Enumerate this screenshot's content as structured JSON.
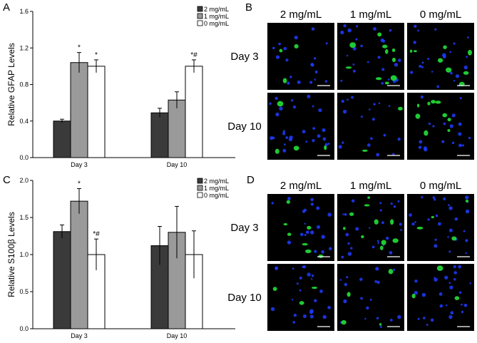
{
  "panels": {
    "A": "A",
    "B": "B",
    "C": "C",
    "D": "D"
  },
  "chart_data": [
    {
      "type": "bar",
      "panel": "A",
      "ylabel": "Relative GFAP Levels",
      "ylim": [
        0,
        1.6
      ],
      "yticks": [
        "0.0",
        "0.4",
        "0.8",
        "1.2",
        "1.6"
      ],
      "categories": [
        "Day 3",
        "Day 10"
      ],
      "legend_position": "top-right",
      "series": [
        {
          "name": "2 mg/mL",
          "color": "#3a3a3a",
          "values": [
            0.4,
            0.49
          ],
          "errors": [
            0.02,
            0.05
          ],
          "annotations": [
            "",
            ""
          ]
        },
        {
          "name": "1 mg/mL",
          "color": "#9a9a9a",
          "values": [
            1.04,
            0.63
          ],
          "errors": [
            0.11,
            0.09
          ],
          "annotations": [
            "*",
            ""
          ]
        },
        {
          "name": "0 mg/mL",
          "color": "#ffffff",
          "values": [
            1.0,
            1.0
          ],
          "errors": [
            0.07,
            0.07
          ],
          "annotations": [
            "*",
            "*#"
          ]
        }
      ]
    },
    {
      "type": "bar",
      "panel": "C",
      "ylabel": "Relative S100β Levels",
      "ylim": [
        0,
        2.0
      ],
      "yticks": [
        "0.0",
        "0.5",
        "1.0",
        "1.5",
        "2.0"
      ],
      "categories": [
        "Day 3",
        "Day 10"
      ],
      "legend_position": "top-right",
      "series": [
        {
          "name": "2 mg/mL",
          "color": "#3a3a3a",
          "values": [
            1.31,
            1.12
          ],
          "errors": [
            0.09,
            0.26
          ],
          "annotations": [
            "",
            ""
          ]
        },
        {
          "name": "1 mg/mL",
          "color": "#9a9a9a",
          "values": [
            1.72,
            1.3
          ],
          "errors": [
            0.17,
            0.35
          ],
          "annotations": [
            "*",
            ""
          ]
        },
        {
          "name": "0 mg/mL",
          "color": "#ffffff",
          "values": [
            1.0,
            1.0
          ],
          "errors": [
            0.21,
            0.32
          ],
          "annotations": [
            "*#",
            ""
          ]
        }
      ]
    }
  ],
  "micrographs": [
    {
      "panel": "B",
      "columns": [
        "2 mg/mL",
        "1 mg/mL",
        "0 mg/mL"
      ],
      "rows": [
        "Day 3",
        "Day 10"
      ]
    },
    {
      "panel": "D",
      "columns": [
        "2 mg/mL",
        "1 mg/mL",
        "0 mg/mL"
      ],
      "rows": [
        "Day 3",
        "Day 10"
      ]
    }
  ]
}
